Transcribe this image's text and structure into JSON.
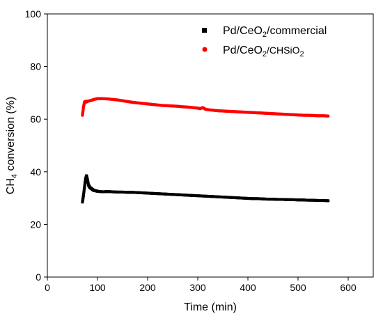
{
  "chart_data": {
    "type": "scatter",
    "title": "",
    "xlabel": "Time (min)",
    "ylabel": {
      "main": "CH",
      "sub": "4",
      "rest": " conversion (%)"
    },
    "xlim": [
      0,
      650
    ],
    "ylim": [
      0,
      100
    ],
    "xticks": [
      0,
      100,
      200,
      300,
      400,
      500,
      600
    ],
    "yticks": [
      0,
      20,
      40,
      60,
      80,
      100
    ],
    "grid": false,
    "legend_position": "top-right",
    "series": [
      {
        "name": {
          "a": "Pd/CeO",
          "b": "2",
          "c": "/commercial"
        },
        "marker": "square",
        "color": "#000000",
        "x": [
          70,
          72,
          74,
          76,
          78,
          80,
          82,
          85,
          88,
          92,
          96,
          100,
          110,
          120,
          130,
          140,
          150,
          160,
          170,
          180,
          190,
          200,
          210,
          220,
          230,
          240,
          250,
          260,
          270,
          280,
          290,
          300,
          310,
          320,
          330,
          340,
          350,
          360,
          370,
          380,
          390,
          400,
          410,
          420,
          430,
          440,
          450,
          460,
          470,
          480,
          490,
          500,
          510,
          520,
          530,
          540,
          550,
          560
        ],
        "y": [
          28.5,
          31.0,
          34.0,
          37.0,
          38.5,
          37.0,
          35.0,
          34.0,
          33.6,
          33.0,
          32.8,
          32.6,
          32.4,
          32.5,
          32.4,
          32.3,
          32.3,
          32.2,
          32.2,
          32.1,
          32.0,
          31.9,
          31.8,
          31.7,
          31.6,
          31.5,
          31.4,
          31.3,
          31.2,
          31.1,
          31.0,
          30.9,
          30.8,
          30.7,
          30.6,
          30.5,
          30.4,
          30.3,
          30.2,
          30.1,
          30.0,
          29.9,
          29.8,
          29.8,
          29.7,
          29.6,
          29.6,
          29.5,
          29.5,
          29.4,
          29.4,
          29.3,
          29.3,
          29.2,
          29.2,
          29.1,
          29.1,
          29.0
        ]
      },
      {
        "name": {
          "a": "Pd/CeO",
          "b": "2",
          "c": "/CHSiO",
          "d": "2"
        },
        "marker": "circle",
        "color": "#ff0000",
        "x": [
          70,
          72,
          74,
          76,
          78,
          80,
          85,
          90,
          95,
          100,
          110,
          120,
          130,
          140,
          150,
          160,
          170,
          180,
          190,
          200,
          210,
          220,
          230,
          240,
          250,
          260,
          270,
          280,
          290,
          300,
          305,
          310,
          315,
          320,
          330,
          340,
          350,
          360,
          370,
          380,
          390,
          400,
          410,
          420,
          430,
          440,
          450,
          460,
          470,
          480,
          490,
          500,
          510,
          520,
          530,
          540,
          550,
          560
        ],
        "y": [
          61.5,
          64.5,
          66.5,
          66.8,
          66.5,
          66.8,
          67.0,
          67.3,
          67.6,
          67.8,
          67.8,
          67.7,
          67.5,
          67.3,
          67.0,
          66.7,
          66.4,
          66.2,
          66.0,
          65.8,
          65.6,
          65.4,
          65.2,
          65.1,
          65.0,
          64.9,
          64.7,
          64.6,
          64.4,
          64.2,
          64.0,
          64.4,
          63.8,
          63.6,
          63.4,
          63.2,
          63.1,
          63.0,
          62.9,
          62.8,
          62.7,
          62.6,
          62.5,
          62.4,
          62.3,
          62.2,
          62.1,
          62.0,
          61.9,
          61.8,
          61.7,
          61.6,
          61.5,
          61.5,
          61.4,
          61.3,
          61.3,
          61.2
        ]
      }
    ]
  }
}
